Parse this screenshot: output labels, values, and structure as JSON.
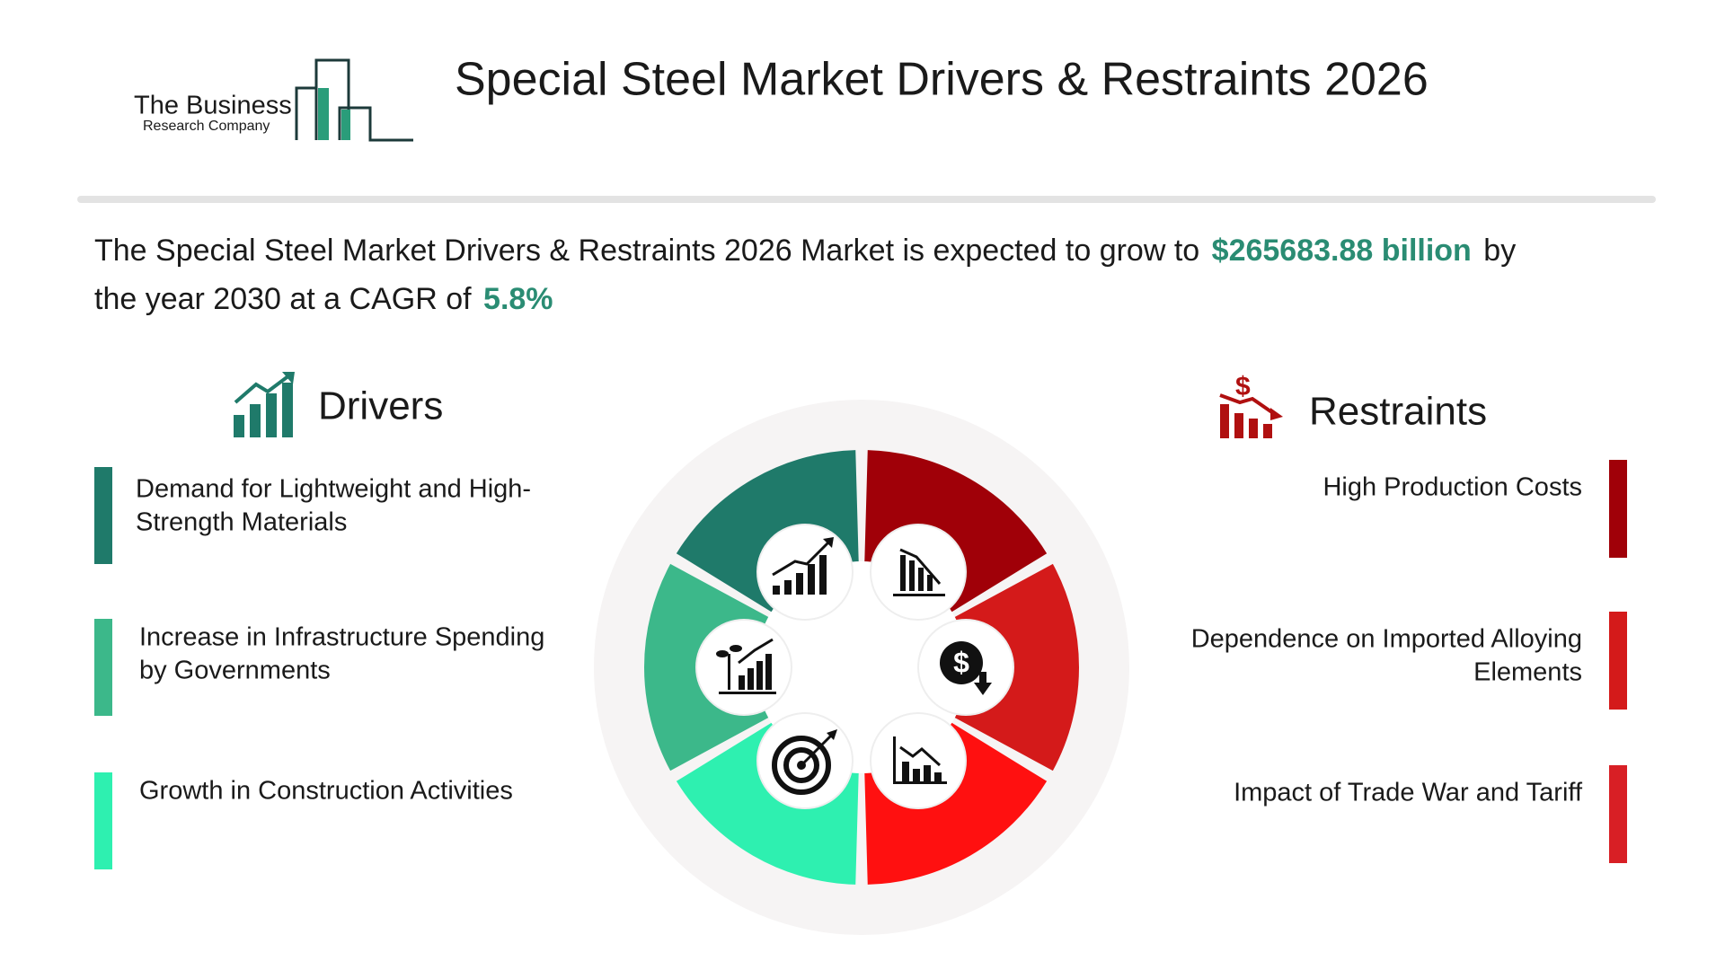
{
  "logo": {
    "line_1": "The Business",
    "line_2": "Research Company"
  },
  "title": "Special Steel Market Drivers & Restraints 2026",
  "summary": {
    "text_1": "The Special Steel Market Drivers & Restraints 2026 Market is expected to grow to",
    "value": "$265683.88 billion",
    "text_2": "by",
    "text_3": "the year 2030 at a CAGR of",
    "cagr": "5.8%"
  },
  "drivers": {
    "heading": "Drivers",
    "items": [
      {
        "lines": [
          "Demand for Lightweight and High-",
          "Strength Materials"
        ]
      },
      {
        "lines": [
          "Increase in Infrastructure Spending",
          "by Governments"
        ]
      },
      {
        "lines": [
          "Growth in Construction Activities"
        ]
      }
    ]
  },
  "restraints": {
    "heading": "Restraints",
    "items": [
      {
        "lines": [
          "High Production Costs"
        ]
      },
      {
        "lines": [
          "Dependence on Imported Alloying",
          "Elements"
        ]
      },
      {
        "lines": [
          "Impact of Trade War and Tariff"
        ]
      }
    ]
  }
}
